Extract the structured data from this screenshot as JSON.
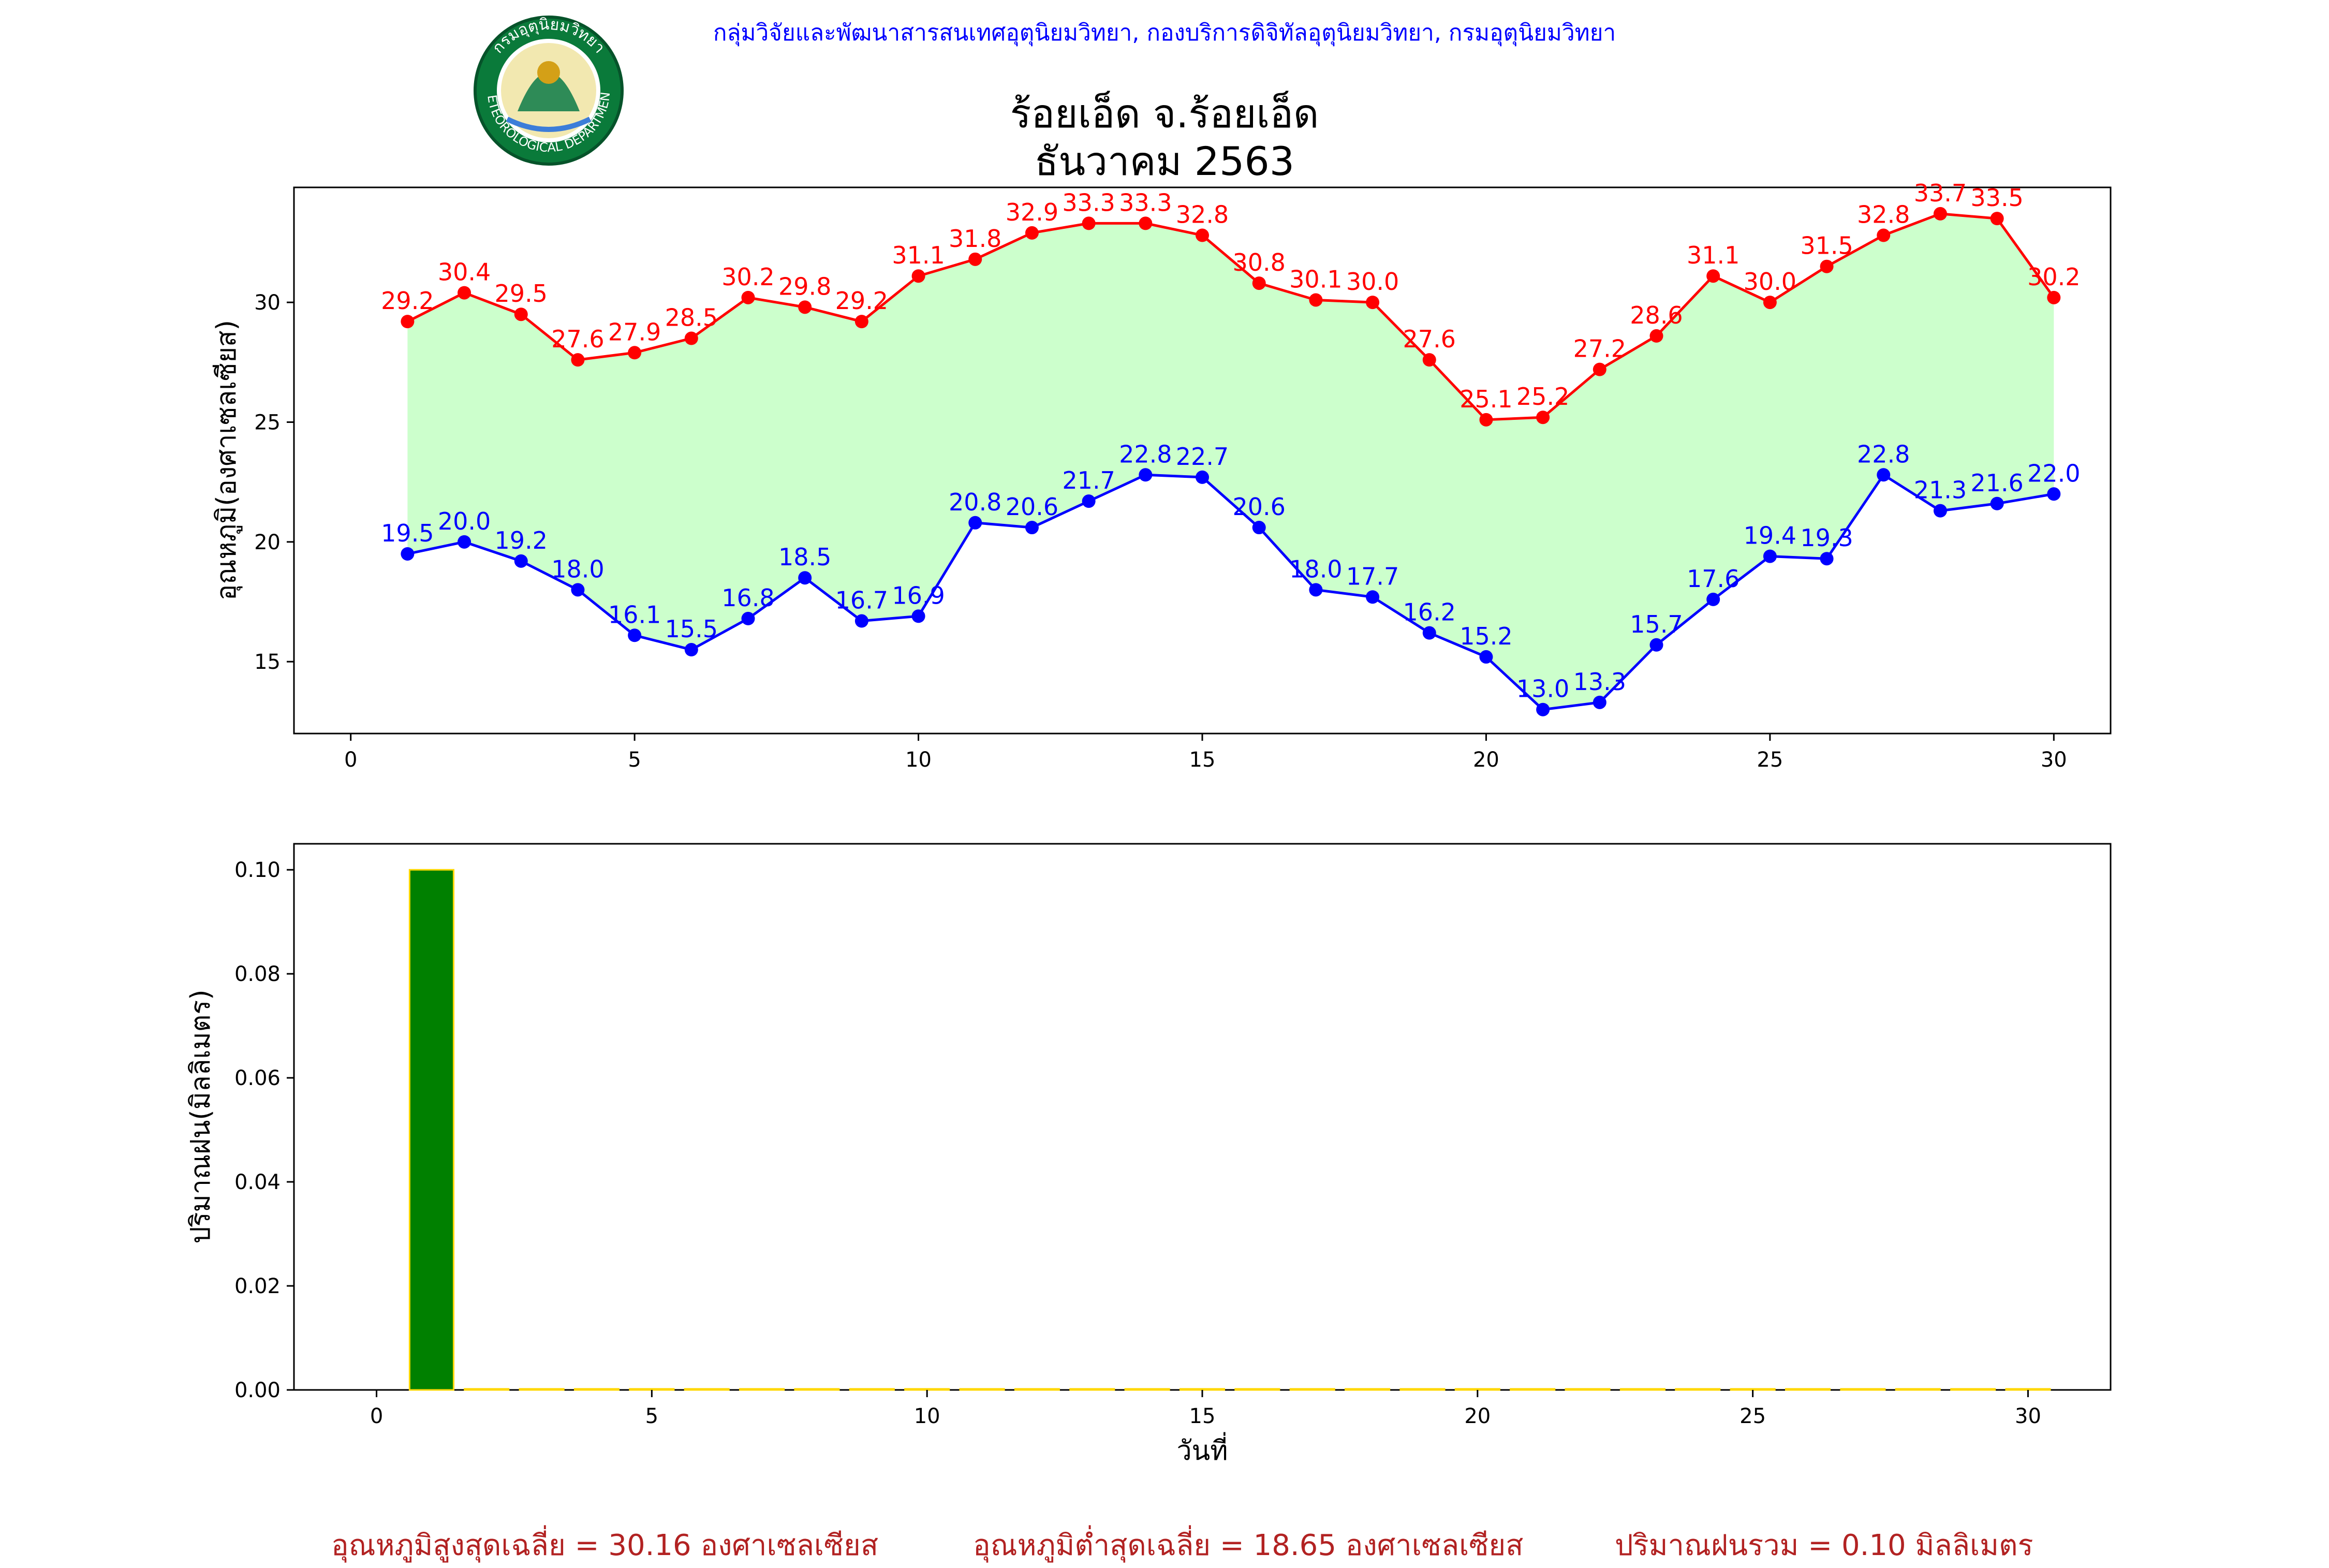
{
  "header": {
    "org_line": "กลุ่มวิจัยและพัฒนาสารสนเทศอุตุนิยมวิทยา, กองบริการดิจิทัลอุตุนิยมวิทยา, กรมอุตุนิยมวิทยา",
    "title_line1": "ร้อยเอ็ด จ.ร้อยเอ็ด",
    "title_line2": "ธันวาคม 2563",
    "logo_text": "กรมอุตุนิยมวิทยา",
    "logo_text_en": "METEOROLOGICAL DEPARTMENT"
  },
  "chart_data": [
    {
      "type": "line",
      "ylabel": "อุณหภูมิ(องศาเซลเซียส)",
      "xlim": [
        -1,
        31
      ],
      "ylim": [
        12,
        34.8
      ],
      "xticks": [
        0,
        5,
        10,
        15,
        20,
        25,
        30
      ],
      "yticks": [
        15,
        20,
        25,
        30
      ],
      "x": [
        1,
        2,
        3,
        4,
        5,
        6,
        7,
        8,
        9,
        10,
        11,
        12,
        13,
        14,
        15,
        16,
        17,
        18,
        19,
        20,
        21,
        22,
        23,
        24,
        25,
        26,
        27,
        28,
        29,
        30
      ],
      "fill_between": {
        "color": "#ccffcc"
      },
      "series": [
        {
          "color": "#ff0000",
          "values": [
            29.2,
            30.4,
            29.5,
            27.6,
            27.9,
            28.5,
            30.2,
            29.8,
            29.2,
            31.1,
            31.8,
            32.9,
            33.3,
            33.3,
            32.8,
            30.8,
            30.1,
            30.0,
            27.6,
            25.1,
            25.2,
            27.2,
            28.6,
            31.1,
            30.0,
            31.5,
            32.8,
            33.7,
            33.5,
            30.2
          ]
        },
        {
          "color": "#0000ff",
          "values": [
            19.5,
            20.0,
            19.2,
            18.0,
            16.1,
            15.5,
            16.8,
            18.5,
            16.7,
            16.9,
            20.8,
            20.6,
            21.7,
            22.8,
            22.7,
            20.6,
            18.0,
            17.7,
            16.2,
            15.2,
            13.0,
            13.3,
            15.7,
            17.6,
            19.4,
            19.3,
            22.8,
            21.3,
            21.6,
            22.0
          ]
        }
      ]
    },
    {
      "type": "bar",
      "xlabel": "วันที่",
      "ylabel": "ปริมาณฝน(มิลลิเมตร)",
      "xlim": [
        -1.5,
        31.5
      ],
      "ylim": [
        0,
        0.105
      ],
      "xticks": [
        0,
        5,
        10,
        15,
        20,
        25,
        30
      ],
      "yticks": [
        0.0,
        0.02,
        0.04,
        0.06,
        0.08,
        0.1
      ],
      "x": [
        1,
        2,
        3,
        4,
        5,
        6,
        7,
        8,
        9,
        10,
        11,
        12,
        13,
        14,
        15,
        16,
        17,
        18,
        19,
        20,
        21,
        22,
        23,
        24,
        25,
        26,
        27,
        28,
        29,
        30
      ],
      "values": [
        0.1,
        0,
        0,
        0,
        0,
        0,
        0,
        0,
        0,
        0,
        0,
        0,
        0,
        0,
        0,
        0,
        0,
        0,
        0,
        0,
        0,
        0,
        0,
        0,
        0,
        0,
        0,
        0,
        0,
        0
      ],
      "bar_color": "#008000",
      "edge_color": "#ffd700"
    }
  ],
  "summary": {
    "max_avg": "อุณหภูมิสูงสุดเฉลี่ย = 30.16 องศาเซลเซียส",
    "min_avg": "อุณหภูมิต่ำสุดเฉลี่ย = 18.65 องศาเซลเซียส",
    "rain_total": "ปริมาณฝนรวม = 0.10 มิลลิเมตร"
  }
}
